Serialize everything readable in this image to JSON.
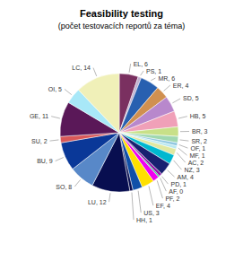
{
  "chart_data": {
    "type": "pie",
    "title": "Feasibility testing",
    "subtitle": "(počet testovacích reportů za téma)",
    "categories": [
      "EL",
      "PS",
      "MR",
      "ER",
      "SD",
      "HB",
      "BR",
      "SR",
      "OF",
      "MF",
      "AC",
      "NZ",
      "AM",
      "PD",
      "AF",
      "PF",
      "EF",
      "US",
      "HH",
      "LU",
      "SO",
      "BU",
      "SU",
      "GE",
      "OI",
      "LC"
    ],
    "values": [
      6,
      1,
      6,
      4,
      5,
      5,
      3,
      2,
      1,
      1,
      2,
      3,
      4,
      1,
      0.4,
      2,
      4,
      3,
      1,
      12,
      8,
      9,
      2,
      11,
      5,
      14
    ],
    "value_labels": [
      "EL, 6",
      "PS, 1",
      "MR, 6",
      "ER, 4",
      "SD, 5",
      "HB, 5",
      "BR, 3",
      "SR, 2",
      "OF, 1",
      "MF, 1",
      "AC, 2",
      "NZ, 3",
      "AM, 4",
      "PD, 1",
      "AF, 0",
      "PF, 2",
      "EF, 4",
      "US, 3",
      "HH, 1",
      "LU, 12",
      "SO, 8",
      "BU, 9",
      "SU, 2",
      "GE, 11",
      "OI, 5",
      "LC, 14"
    ],
    "colors": [
      "#7a3060",
      "#c0b0d0",
      "#2860b0",
      "#d09050",
      "#b888cc",
      "#f0a0b8",
      "#c8e088",
      "#a0d8b0",
      "#90c8e0",
      "#b8e8f0",
      "#e0e8a0",
      "#00b8d0",
      "#182070",
      "#9020a8",
      "#00d860",
      "#f000f0",
      "#ffe000",
      "#1050a8",
      "#080e50",
      "#080e50",
      "#5888c8",
      "#0a3898",
      "#d85858",
      "#5a1858",
      "#a8e8f8",
      "#f0f0b8"
    ]
  }
}
